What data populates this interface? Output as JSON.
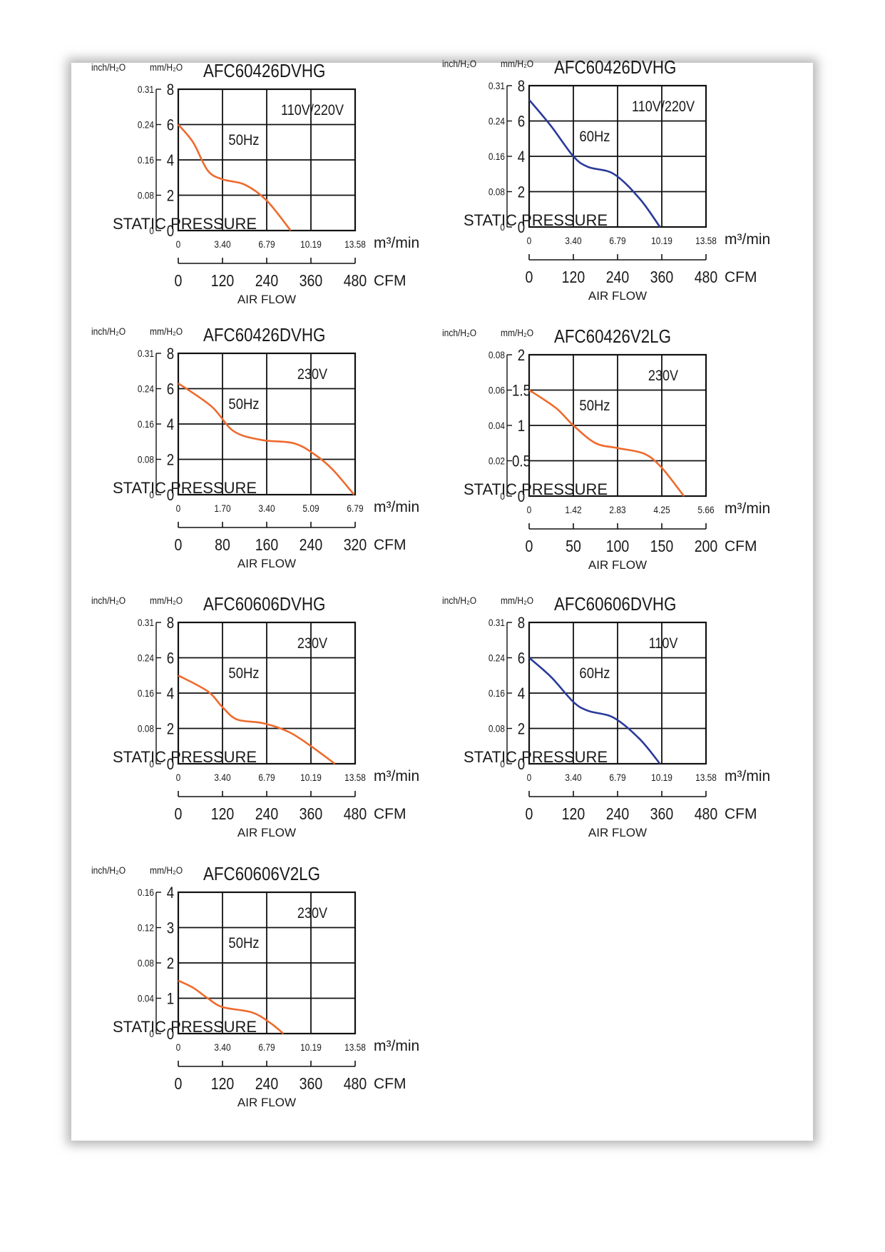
{
  "chart_data": [
    {
      "type": "line",
      "model": "AFC60426DVHG",
      "voltage": "110V/220V",
      "unit_inch": "inch/H₂O",
      "unit_mm": "mm/H₂O",
      "ylabel": "STATIC PRESSURE",
      "xlabel": "AIR FLOW",
      "x_unit_m3": "m³/min",
      "x_unit_cfm": "CFM",
      "y_ticks_mm": [
        "0",
        "2",
        "4",
        "6",
        "8"
      ],
      "y_ticks_inch": [
        "0",
        "0.08",
        "0.16",
        "0.24",
        "0.31"
      ],
      "x_ticks_m3": [
        "0",
        "3.40",
        "6.79",
        "10.19",
        "13.58"
      ],
      "x_ticks_cfm": [
        "0",
        "120",
        "240",
        "360",
        "480"
      ],
      "xlim_cfm": [
        0,
        480
      ],
      "ylim_mm": [
        0,
        8
      ],
      "series": [
        {
          "name": "50Hz",
          "color": "#ee6a2c",
          "points": [
            [
              0,
              6.0
            ],
            [
              40,
              5.0
            ],
            [
              80,
              3.4
            ],
            [
              120,
              2.9
            ],
            [
              180,
              2.6
            ],
            [
              240,
              1.7
            ],
            [
              305,
              0
            ]
          ]
        }
      ]
    },
    {
      "type": "line",
      "model": "AFC60426DVHG",
      "voltage": "110V/220V",
      "unit_inch": "inch/H₂O",
      "unit_mm": "mm/H₂O",
      "ylabel": "STATIC PRESSURE",
      "xlabel": "AIR FLOW",
      "x_unit_m3": "m³/min",
      "x_unit_cfm": "CFM",
      "y_ticks_mm": [
        "0",
        "2",
        "4",
        "6",
        "8"
      ],
      "y_ticks_inch": [
        "0",
        "0.08",
        "0.16",
        "0.24",
        "0.31"
      ],
      "x_ticks_m3": [
        "0",
        "3.40",
        "6.79",
        "10.19",
        "13.58"
      ],
      "x_ticks_cfm": [
        "0",
        "120",
        "240",
        "360",
        "480"
      ],
      "xlim_cfm": [
        0,
        480
      ],
      "ylim_mm": [
        0,
        8
      ],
      "series": [
        {
          "name": "60Hz",
          "color": "#2a3a9a",
          "points": [
            [
              0,
              7.2
            ],
            [
              60,
              5.7
            ],
            [
              120,
              4.0
            ],
            [
              160,
              3.4
            ],
            [
              230,
              3.0
            ],
            [
              300,
              1.6
            ],
            [
              355,
              0
            ]
          ]
        }
      ]
    },
    {
      "type": "line",
      "model": "AFC60426DVHG",
      "voltage": "230V",
      "unit_inch": "inch/H₂O",
      "unit_mm": "mm/H₂O",
      "ylabel": "STATIC PRESSURE",
      "xlabel": "AIR FLOW",
      "x_unit_m3": "m³/min",
      "x_unit_cfm": "CFM",
      "y_ticks_mm": [
        "0",
        "2",
        "4",
        "6",
        "8"
      ],
      "y_ticks_inch": [
        "0",
        "0.08",
        "0.16",
        "0.24",
        "0.31"
      ],
      "x_ticks_m3": [
        "0",
        "1.70",
        "3.40",
        "5.09",
        "6.79"
      ],
      "x_ticks_cfm": [
        "0",
        "80",
        "160",
        "240",
        "320"
      ],
      "xlim_cfm": [
        0,
        320
      ],
      "ylim_mm": [
        0,
        8
      ],
      "series": [
        {
          "name": "50Hz",
          "color": "#ee6a2c",
          "points": [
            [
              0,
              6.3
            ],
            [
              60,
              5.0
            ],
            [
              100,
              3.6
            ],
            [
              150,
              3.1
            ],
            [
              210,
              2.9
            ],
            [
              250,
              2.2
            ],
            [
              280,
              1.4
            ],
            [
              318,
              0
            ]
          ]
        }
      ]
    },
    {
      "type": "line",
      "model": "AFC60426V2LG",
      "voltage": "230V",
      "unit_inch": "inch/H₂O",
      "unit_mm": "mm/H₂O",
      "ylabel": "STATIC PRESSURE",
      "xlabel": "AIR FLOW",
      "x_unit_m3": "m³/min",
      "x_unit_cfm": "CFM",
      "y_ticks_mm": [
        "0",
        "0.5",
        "1",
        "1.5",
        "2"
      ],
      "y_ticks_inch": [
        "0",
        "0.02",
        "0.04",
        "0.06",
        "0.08"
      ],
      "x_ticks_m3": [
        "0",
        "1.42",
        "2.83",
        "4.25",
        "5.66"
      ],
      "x_ticks_cfm": [
        "0",
        "50",
        "100",
        "150",
        "200"
      ],
      "xlim_cfm": [
        0,
        200
      ],
      "ylim_mm": [
        0,
        2
      ],
      "series": [
        {
          "name": "50Hz",
          "color": "#ee6a2c",
          "points": [
            [
              0,
              1.5
            ],
            [
              30,
              1.25
            ],
            [
              50,
              1.0
            ],
            [
              75,
              0.75
            ],
            [
              100,
              0.68
            ],
            [
              130,
              0.6
            ],
            [
              150,
              0.4
            ],
            [
              175,
              0
            ]
          ]
        }
      ]
    },
    {
      "type": "line",
      "model": "AFC60606DVHG",
      "voltage": "230V",
      "unit_inch": "inch/H₂O",
      "unit_mm": "mm/H₂O",
      "ylabel": "STATIC PRESSURE",
      "xlabel": "AIR FLOW",
      "x_unit_m3": "m³/min",
      "x_unit_cfm": "CFM",
      "y_ticks_mm": [
        "0",
        "2",
        "4",
        "6",
        "8"
      ],
      "y_ticks_inch": [
        "0",
        "0.08",
        "0.16",
        "0.24",
        "0.31"
      ],
      "x_ticks_m3": [
        "0",
        "3.40",
        "6.79",
        "10.19",
        "13.58"
      ],
      "x_ticks_cfm": [
        "0",
        "120",
        "240",
        "360",
        "480"
      ],
      "xlim_cfm": [
        0,
        480
      ],
      "ylim_mm": [
        0,
        8
      ],
      "series": [
        {
          "name": "50Hz",
          "color": "#ee6a2c",
          "points": [
            [
              0,
              5.0
            ],
            [
              80,
              4.1
            ],
            [
              120,
              3.2
            ],
            [
              160,
              2.5
            ],
            [
              230,
              2.3
            ],
            [
              300,
              1.8
            ],
            [
              360,
              1.0
            ],
            [
              425,
              0
            ]
          ]
        }
      ]
    },
    {
      "type": "line",
      "model": "AFC60606DVHG",
      "voltage": "110V",
      "unit_inch": "inch/H₂O",
      "unit_mm": "mm/H₂O",
      "ylabel": "STATIC PRESSURE",
      "xlabel": "AIR FLOW",
      "x_unit_m3": "m³/min",
      "x_unit_cfm": "CFM",
      "y_ticks_mm": [
        "0",
        "2",
        "4",
        "6",
        "8"
      ],
      "y_ticks_inch": [
        "0",
        "0.08",
        "0.16",
        "0.24",
        "0.31"
      ],
      "x_ticks_m3": [
        "0",
        "3.40",
        "6.79",
        "10.19",
        "13.58"
      ],
      "x_ticks_cfm": [
        "0",
        "120",
        "240",
        "360",
        "480"
      ],
      "xlim_cfm": [
        0,
        480
      ],
      "ylim_mm": [
        0,
        8
      ],
      "series": [
        {
          "name": "60Hz",
          "color": "#2a3a9a",
          "points": [
            [
              0,
              6.0
            ],
            [
              60,
              4.9
            ],
            [
              120,
              3.5
            ],
            [
              160,
              3.0
            ],
            [
              230,
              2.6
            ],
            [
              300,
              1.4
            ],
            [
              355,
              0
            ]
          ]
        }
      ]
    },
    {
      "type": "line",
      "model": "AFC60606V2LG",
      "voltage": "230V",
      "unit_inch": "inch/H₂O",
      "unit_mm": "mm/H₂O",
      "ylabel": "STATIC PRESSURE",
      "xlabel": "AIR FLOW",
      "x_unit_m3": "m³/min",
      "x_unit_cfm": "CFM",
      "y_ticks_mm": [
        "0",
        "1",
        "2",
        "3",
        "4"
      ],
      "y_ticks_inch": [
        "0",
        "0.04",
        "0.08",
        "0.12",
        "0.16"
      ],
      "x_ticks_m3": [
        "0",
        "3.40",
        "6.79",
        "10.19",
        "13.58"
      ],
      "x_ticks_cfm": [
        "0",
        "120",
        "240",
        "360",
        "480"
      ],
      "xlim_cfm": [
        0,
        480
      ],
      "ylim_mm": [
        0,
        4
      ],
      "series": [
        {
          "name": "50Hz",
          "color": "#ee6a2c",
          "points": [
            [
              0,
              1.5
            ],
            [
              40,
              1.3
            ],
            [
              80,
              1.0
            ],
            [
              120,
              0.75
            ],
            [
              200,
              0.6
            ],
            [
              250,
              0.3
            ],
            [
              285,
              0
            ]
          ]
        }
      ]
    }
  ]
}
